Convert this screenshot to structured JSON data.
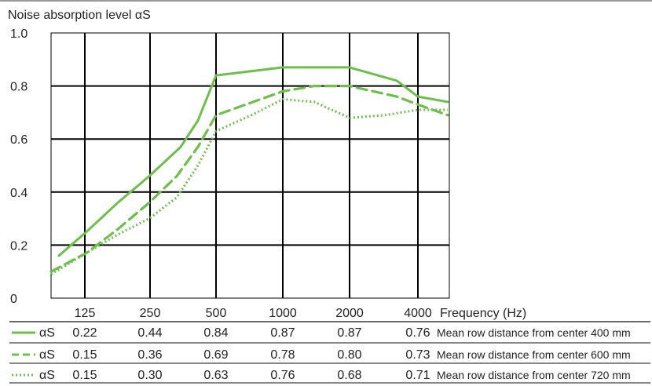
{
  "chart_data": {
    "type": "line",
    "ylabel": "Noise absorption level αS",
    "xlabel": "Frequency (Hz)",
    "categories": [
      "125",
      "250",
      "500",
      "1000",
      "2000",
      "4000"
    ],
    "ylim": [
      0,
      1.0
    ],
    "yticks": [
      "0",
      "0.2",
      "0.4",
      "0.6",
      "0.8",
      "1.0"
    ],
    "grid": true,
    "series": [
      {
        "name": "Mean row distance from center 400 mm",
        "symbol": "αS",
        "style": "solid",
        "values": [
          0.22,
          0.44,
          0.84,
          0.87,
          0.87,
          0.76
        ],
        "labels": [
          "0.22",
          "0.44",
          "0.84",
          "0.87",
          "0.87",
          "0.76"
        ],
        "curve": [
          [
            75,
            0.16
          ],
          [
            110,
            0.25
          ],
          [
            150,
            0.36
          ],
          [
            190,
            0.46
          ],
          [
            230,
            0.57
          ],
          [
            252,
            0.67
          ],
          [
            275,
            0.84
          ],
          [
            360,
            0.87
          ],
          [
            445,
            0.87
          ],
          [
            505,
            0.82
          ],
          [
            532,
            0.76
          ],
          [
            570,
            0.74
          ]
        ]
      },
      {
        "name": "Mean row distance from center 600 mm",
        "symbol": "αS",
        "style": "dashed",
        "values": [
          0.15,
          0.36,
          0.69,
          0.78,
          0.8,
          0.73
        ],
        "labels": [
          "0.15",
          "0.36",
          "0.69",
          "0.78",
          "0.80",
          "0.73"
        ],
        "curve": [
          [
            65,
            0.1
          ],
          [
            110,
            0.17
          ],
          [
            150,
            0.26
          ],
          [
            190,
            0.36
          ],
          [
            225,
            0.46
          ],
          [
            252,
            0.57
          ],
          [
            275,
            0.69
          ],
          [
            360,
            0.78
          ],
          [
            400,
            0.8
          ],
          [
            445,
            0.8
          ],
          [
            505,
            0.76
          ],
          [
            532,
            0.73
          ],
          [
            570,
            0.69
          ]
        ]
      },
      {
        "name": "Mean row distance from center 720 mm",
        "symbol": "αS",
        "style": "dotted",
        "values": [
          0.15,
          0.3,
          0.63,
          0.76,
          0.68,
          0.71
        ],
        "labels": [
          "0.15",
          "0.30",
          "0.63",
          "0.76",
          "0.68",
          "0.71"
        ],
        "curve": [
          [
            65,
            0.09
          ],
          [
            110,
            0.17
          ],
          [
            150,
            0.24
          ],
          [
            190,
            0.3
          ],
          [
            225,
            0.38
          ],
          [
            252,
            0.5
          ],
          [
            275,
            0.63
          ],
          [
            320,
            0.69
          ],
          [
            360,
            0.75
          ],
          [
            400,
            0.74
          ],
          [
            430,
            0.7
          ],
          [
            445,
            0.68
          ],
          [
            490,
            0.69
          ],
          [
            532,
            0.71
          ],
          [
            570,
            0.71
          ]
        ]
      }
    ],
    "line_color": "#6cc04a",
    "grid_color": "#000000"
  }
}
